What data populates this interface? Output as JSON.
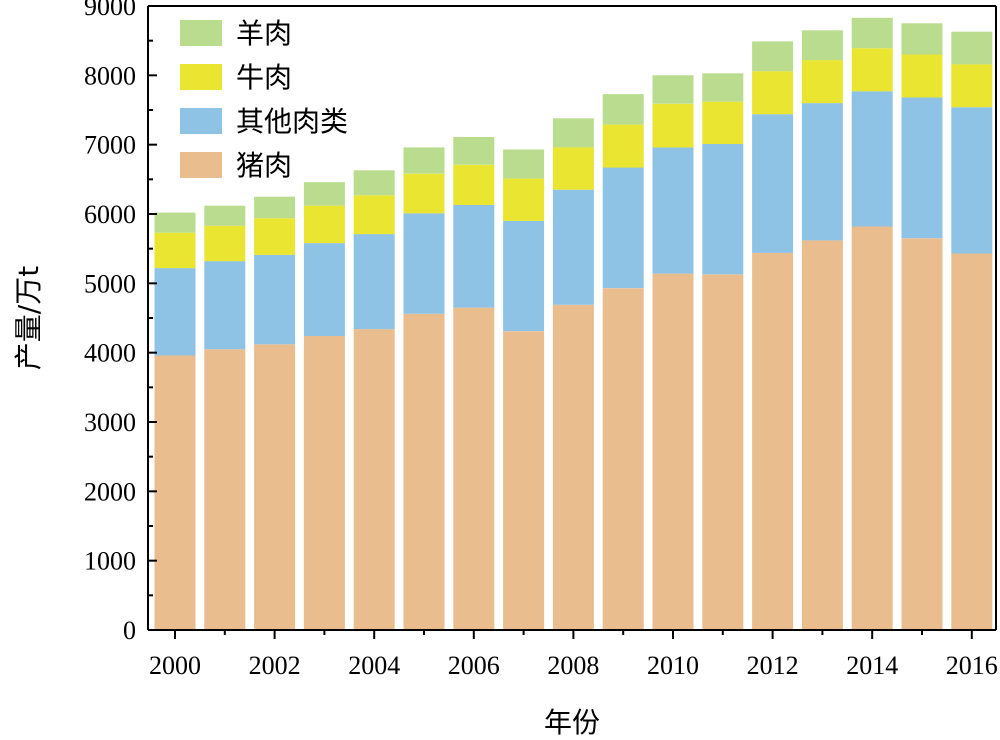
{
  "chart_data": {
    "type": "bar",
    "stacked": true,
    "xlabel": "年份",
    "ylabel": "产量/万t",
    "ylim": [
      0,
      9000
    ],
    "y_ticks": [
      "0",
      "1000",
      "2000",
      "3000",
      "4000",
      "5000",
      "6000",
      "7000",
      "8000",
      "9000"
    ],
    "x_tick_labels": [
      "2000",
      "2002",
      "2004",
      "2006",
      "2008",
      "2010",
      "2012",
      "2014",
      "2016"
    ],
    "categories": [
      "2000",
      "2001",
      "2002",
      "2003",
      "2004",
      "2005",
      "2006",
      "2007",
      "2008",
      "2009",
      "2010",
      "2011",
      "2012",
      "2013",
      "2014",
      "2015",
      "2016"
    ],
    "grid": false,
    "legend_position": "top-left",
    "series": [
      {
        "name": "猪肉",
        "color": "#eabd8f",
        "values": [
          3960,
          4050,
          4120,
          4240,
          4340,
          4560,
          4650,
          4310,
          4690,
          4930,
          5140,
          5130,
          5440,
          5620,
          5820,
          5650,
          5430
        ]
      },
      {
        "name": "其他肉类",
        "color": "#8ec3e6",
        "values": [
          1260,
          1270,
          1290,
          1340,
          1370,
          1450,
          1480,
          1590,
          1660,
          1740,
          1820,
          1880,
          2000,
          1980,
          1950,
          2030,
          2110
        ]
      },
      {
        "name": "牛肉",
        "color": "#e9e530",
        "values": [
          510,
          510,
          530,
          540,
          560,
          570,
          580,
          610,
          610,
          620,
          630,
          610,
          620,
          620,
          620,
          620,
          620
        ]
      },
      {
        "name": "羊肉",
        "color": "#b9dc8e",
        "values": [
          290,
          290,
          310,
          340,
          360,
          380,
          400,
          420,
          420,
          440,
          410,
          410,
          430,
          430,
          440,
          450,
          470
        ]
      }
    ],
    "legend_order": [
      "羊肉",
      "牛肉",
      "其他肉类",
      "猪肉"
    ]
  }
}
